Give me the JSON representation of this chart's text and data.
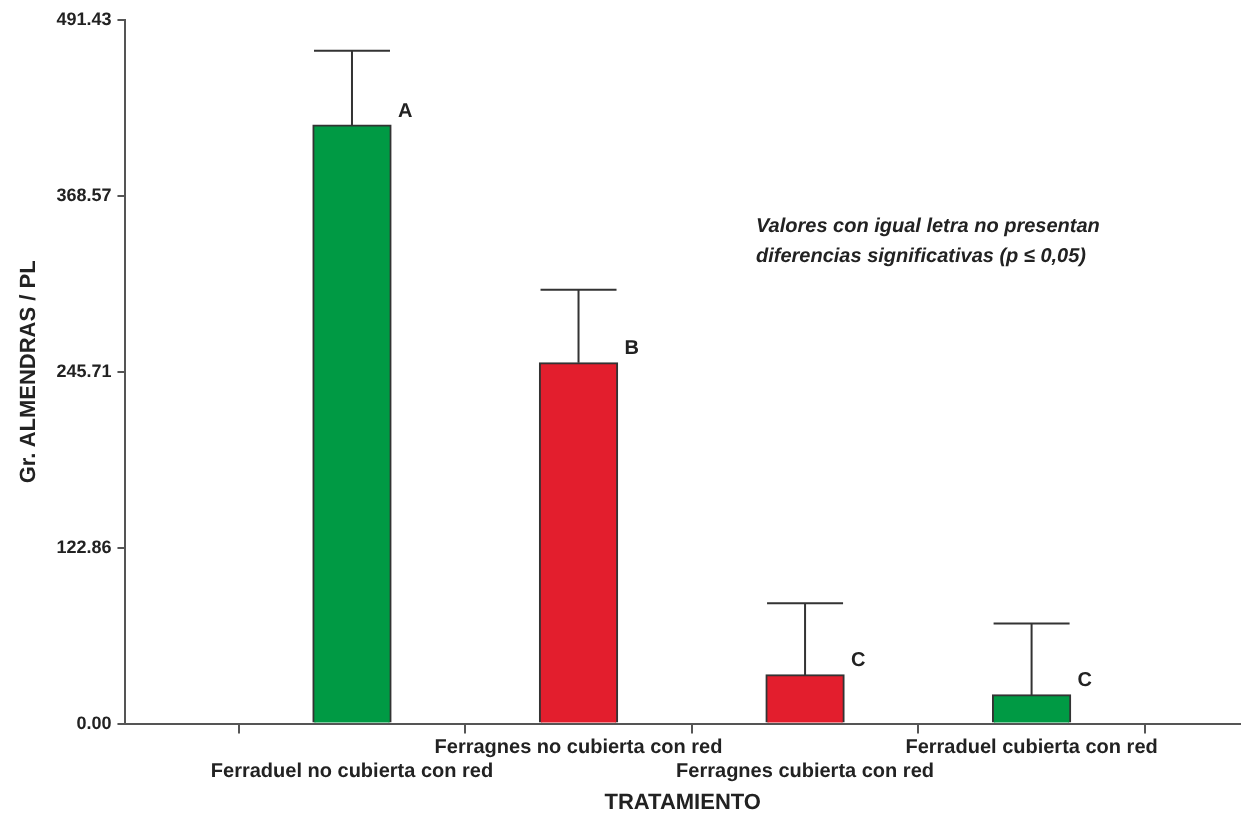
{
  "chart_data": {
    "type": "bar",
    "xlabel": "TRATAMIENTO",
    "ylabel": "Gr. ALMENDRAS / PL",
    "categories": [
      "Ferraduel no cubierta con red",
      "Ferragnes no cubierta con red",
      "Ferragnes cubierta con red",
      "Ferraduel cubierta con red"
    ],
    "values": [
      418,
      252,
      34,
      20
    ],
    "colors": [
      "#009a44",
      "#e31e2d",
      "#e31e2d",
      "#009a44"
    ],
    "errors": [
      [
        418,
        470
      ],
      [
        252,
        303
      ],
      [
        34,
        84
      ],
      [
        20,
        70
      ]
    ],
    "ylim": [
      0,
      491.43
    ],
    "yticks": [
      {
        "value": 0,
        "label": "0.00"
      },
      122.86,
      245.71,
      368.57,
      491.43
    ],
    "grid": false,
    "legend": false,
    "annotations": [
      {
        "text": "A",
        "x": "Ferraduel no cubierta con red",
        "y": 418
      },
      {
        "text": "B",
        "x": "Ferragnes no cubierta con red",
        "y": 252
      },
      {
        "text": "C",
        "x": "Ferragnes cubierta con red",
        "y": 34
      },
      {
        "text": "C",
        "x": "Ferraduel cubierta con red",
        "y": 20
      },
      "Valores con igual letra no presentan diferencias significativas (p ≤ 0,05)"
    ]
  }
}
